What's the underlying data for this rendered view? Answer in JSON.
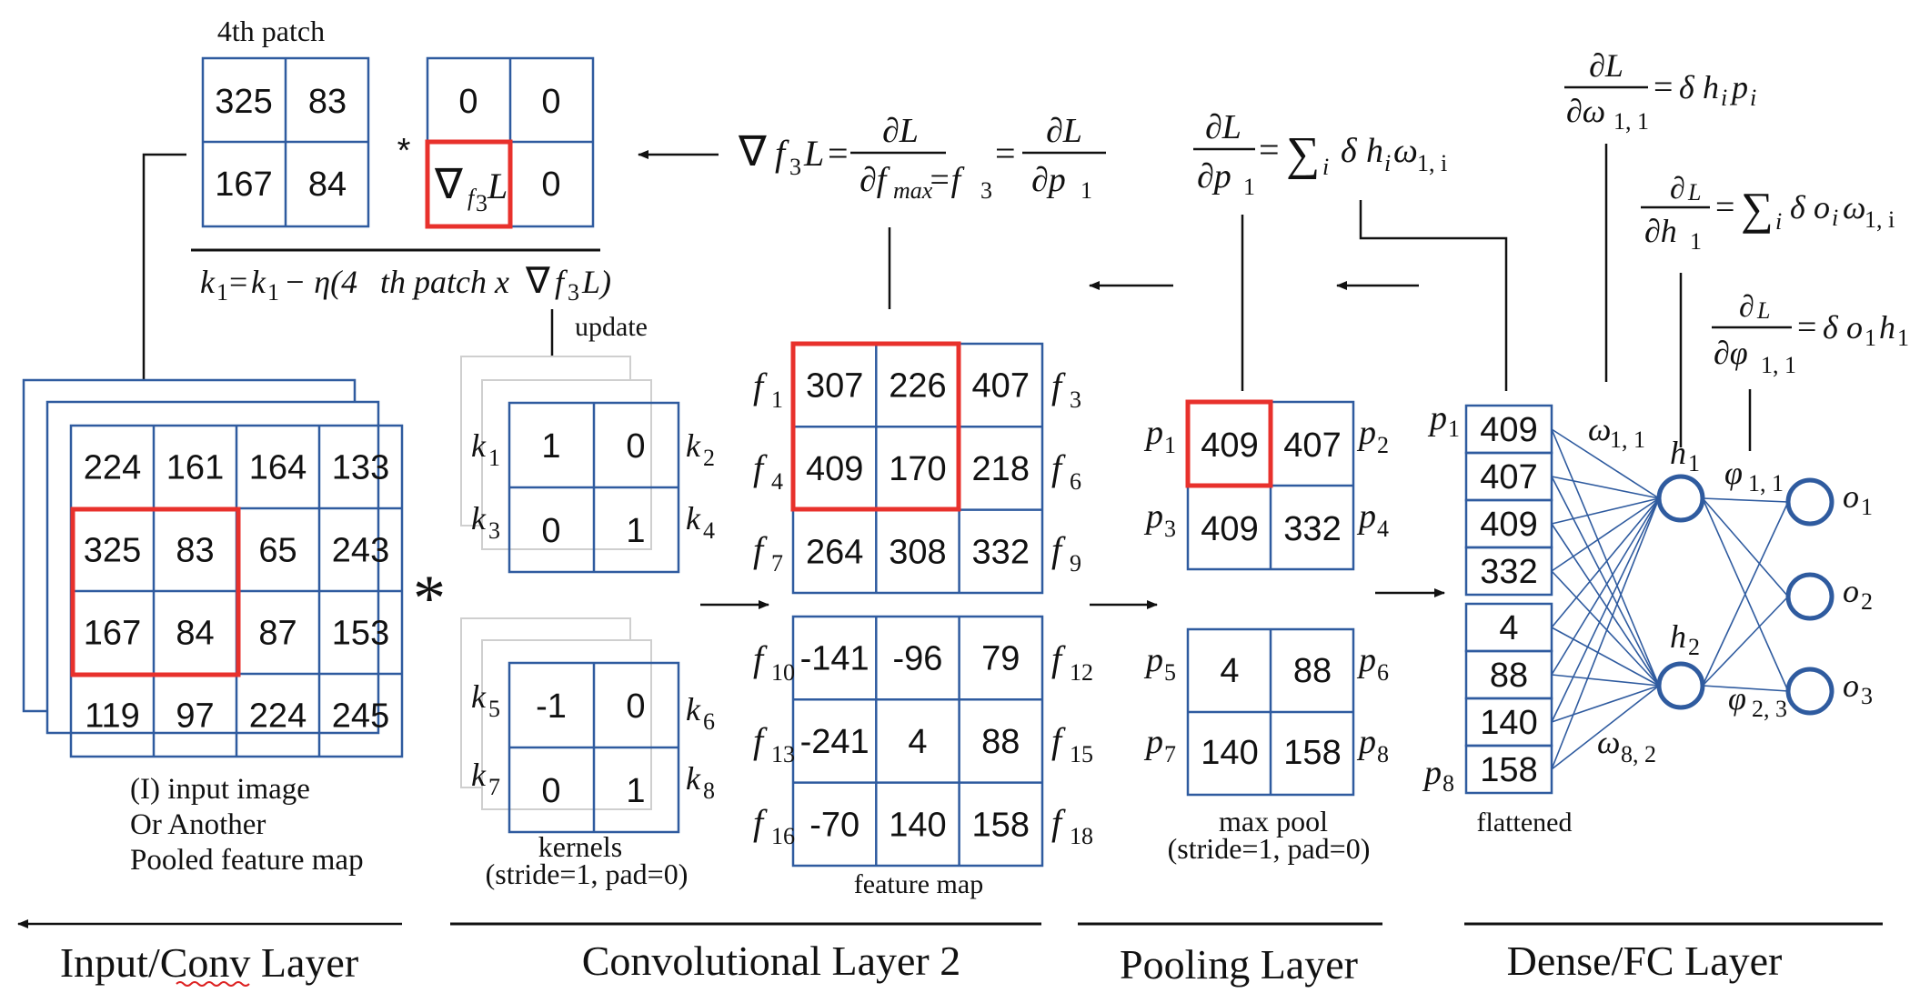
{
  "top_patch": {
    "title": "4th patch",
    "patch": [
      "325",
      "83",
      "167",
      "84"
    ],
    "grad": [
      "0",
      "0",
      "∇",
      "0"
    ],
    "grad_label": "L",
    "grad_sub": "f",
    "grad_subsub": "3",
    "star": "*",
    "update_eq": {
      "a": "k",
      "a_sub": "1",
      "eq": "=",
      "b": "k",
      "b_sub": "1",
      "rest1": "− η(4",
      "rest2": "th patch x ",
      "nabla": "∇",
      "f": "f",
      "f_sub": "3",
      "L": "L)"
    },
    "update_label": "update"
  },
  "input_grid": {
    "cells": [
      "224",
      "161",
      "164",
      "133",
      "325",
      "83",
      "65",
      "243",
      "167",
      "84",
      "87",
      "153",
      "119",
      "97",
      "224",
      "245"
    ],
    "caption1": "(I) input image",
    "caption2": "Or Another",
    "caption3": "Pooled feature map",
    "conv_star": "*"
  },
  "kernels": {
    "k_top": [
      "1",
      "0",
      "0",
      "1"
    ],
    "k_bottom": [
      "-1",
      "0",
      "0",
      "1"
    ],
    "labels": [
      "k",
      "k",
      "k",
      "k",
      "k",
      "k",
      "k",
      "k"
    ],
    "label_subs": [
      "1",
      "2",
      "3",
      "4",
      "5",
      "6",
      "7",
      "8"
    ],
    "caption1": "kernels",
    "caption2": "(stride=1, pad=0)"
  },
  "feature_map": {
    "top": [
      "307",
      "226",
      "407",
      "409",
      "170",
      "218",
      "264",
      "308",
      "332"
    ],
    "bottom": [
      "-141",
      "-96",
      "79",
      "-241",
      "4",
      "88",
      "-70",
      "140",
      "158"
    ],
    "f_subs": [
      "1",
      "3",
      "4",
      "6",
      "7",
      "9",
      "10",
      "12",
      "13",
      "15",
      "16",
      "18"
    ],
    "f": "f",
    "caption": "feature map",
    "grad_eq": {
      "nabla": "∇",
      "f": "f",
      "f_sub": "3",
      "L": "L",
      "eq": "=",
      "dL": "∂L",
      "df": "∂f",
      "max": "max",
      "eqf": "=f",
      "eqf_sub": "3",
      "eq2": "=",
      "dL2": "∂L",
      "dp": "∂p",
      "dp_sub": "1"
    }
  },
  "pool": {
    "top": [
      "409",
      "407",
      "409",
      "332"
    ],
    "bottom": [
      "4",
      "88",
      "140",
      "158"
    ],
    "p": "p",
    "p_subs": [
      "1",
      "2",
      "3",
      "4",
      "5",
      "6",
      "7",
      "8"
    ],
    "caption1": "max  pool",
    "caption2": "(stride=1, pad=0)",
    "grad_eq": {
      "dL": "∂L",
      "dp": "∂p",
      "dp_sub": "1",
      "eq": "=",
      "sum": "∑",
      "sum_sub": "i",
      "delta": "δ",
      "h": "h",
      "h_sub": "i",
      "w": "ω",
      "w_sub": "1, i"
    }
  },
  "dense": {
    "flattened": [
      "409",
      "407",
      "409",
      "332",
      "4",
      "88",
      "140",
      "158"
    ],
    "caption": "flattened",
    "p": "p",
    "p_top_sub": "1",
    "p_bot_sub": "8",
    "w_top": "ω",
    "w_top_sub": "1, 1",
    "w_bot": "ω",
    "w_bot_sub": "8, 2",
    "h": "h",
    "h_subs": [
      "1",
      "2"
    ],
    "phi_top": "φ",
    "phi_top_sub": "1, 1",
    "phi_bot": "φ",
    "phi_bot_sub": "2, 3",
    "o": "o",
    "o_subs": [
      "1",
      "2",
      "3"
    ],
    "eq1": {
      "dL": "∂L",
      "dw": "∂ω",
      "dw_sub": "1, 1",
      "eq": "=",
      "delta": "δ",
      "h": "h",
      "h_sub": "i",
      "p": "p",
      "p_sub": "i"
    },
    "eq2": {
      "dL": "∂",
      "dL_sub": "L",
      "dh": "∂h",
      "dh_sub": "1",
      "eq": "=",
      "sum": "∑",
      "sum_sub": "i",
      "delta": "δ",
      "o": "o",
      "o_sub": "i",
      "w": "ω",
      "w_sub": "1, i"
    },
    "eq3": {
      "dL": "∂",
      "dL_sub": "L",
      "dphi": "∂φ",
      "dphi_sub": "1, 1",
      "eq": "=",
      "delta": "δ",
      "o": "o",
      "o_sub": "1",
      "h": "h",
      "h_sub": "1"
    }
  },
  "footer": {
    "input": "Input/Conv Layer",
    "conv2": "Convolutional  Layer  2",
    "pool": "Pooling Layer",
    "dense": "Dense/FC Layer"
  }
}
